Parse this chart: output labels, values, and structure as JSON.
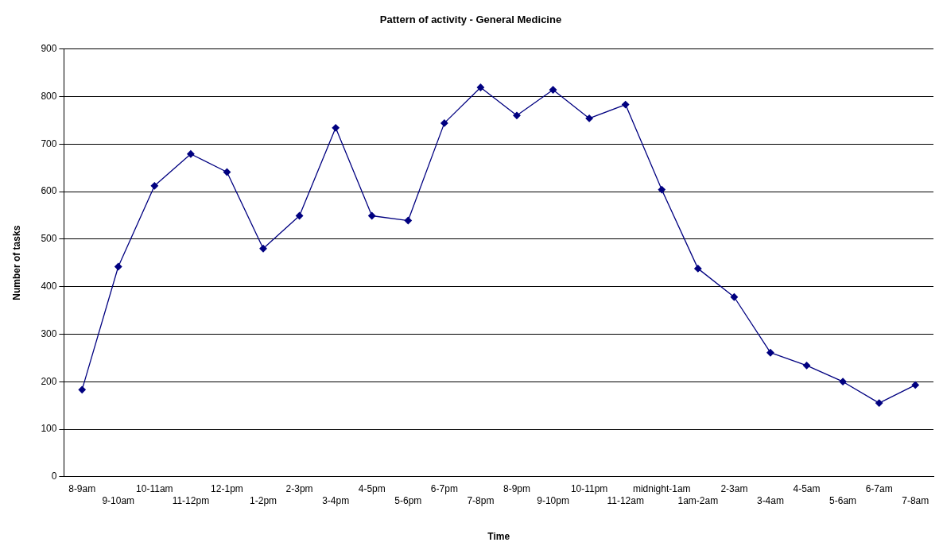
{
  "chart_data": {
    "type": "line",
    "title": "Pattern of activity - General Medicine",
    "xlabel": "Time",
    "ylabel": "Number of tasks",
    "categories": [
      "8-9am",
      "9-10am",
      "10-11am",
      "11-12pm",
      "12-1pm",
      "1-2pm",
      "2-3pm",
      "3-4pm",
      "4-5pm",
      "5-6pm",
      "6-7pm",
      "7-8pm",
      "8-9pm",
      "9-10pm",
      "10-11pm",
      "11-12am",
      "midnight-1am",
      "1am-2am",
      "2-3am",
      "3-4am",
      "4-5am",
      "5-6am",
      "6-7am",
      "7-8am"
    ],
    "series": [
      {
        "color": "#000080",
        "values": [
          183,
          442,
          612,
          679,
          641,
          480,
          549,
          734,
          549,
          539,
          744,
          819,
          760,
          814,
          754,
          783,
          604,
          438,
          378,
          261,
          234,
          200,
          155,
          193
        ]
      }
    ],
    "ylim": [
      0,
      900
    ],
    "yticks": [
      0,
      100,
      200,
      300,
      400,
      500,
      600,
      700,
      800,
      900
    ],
    "grid": "y",
    "legend": false,
    "marker": "diamond",
    "line_style": "solid"
  }
}
